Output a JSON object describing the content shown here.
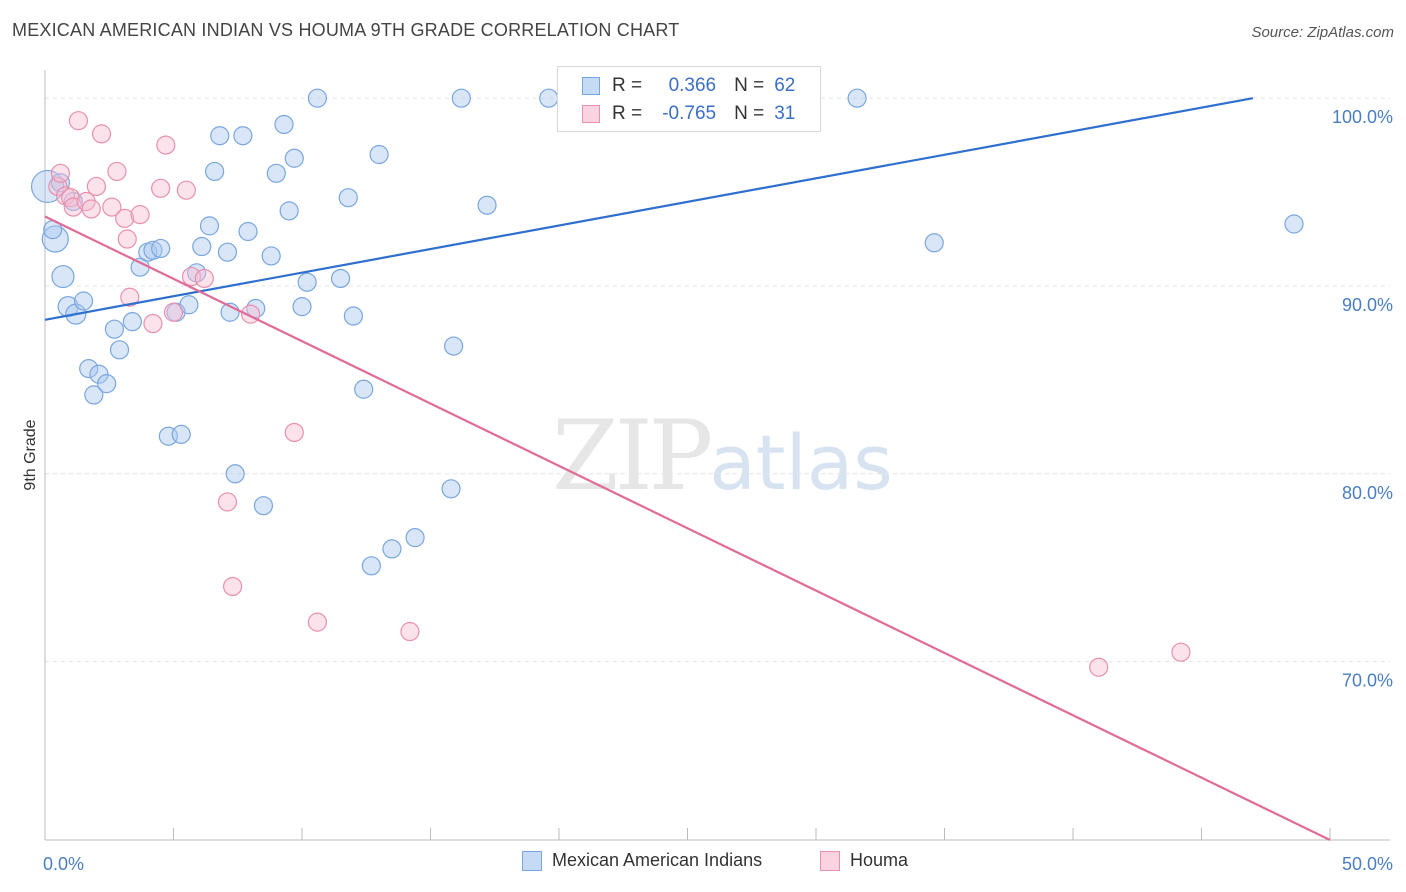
{
  "header": {
    "title": "MEXICAN AMERICAN INDIAN VS HOUMA 9TH GRADE CORRELATION CHART",
    "source": "Source: ZipAtlas.com"
  },
  "watermark": {
    "zip": "ZIP",
    "atlas": "atlas"
  },
  "legend_top": {
    "rows": [
      {
        "r_label": "R =",
        "r_value": "0.366",
        "n_label": "N =",
        "n_value": "62",
        "color": "#a9c8f0",
        "border": "#7aa6de"
      },
      {
        "r_label": "R =",
        "r_value": "-0.765",
        "n_label": "N =",
        "n_value": "31",
        "color": "#f7bfd2",
        "border": "#e890ae"
      }
    ]
  },
  "legend_bottom": [
    {
      "label": "Mexican American Indians",
      "color": "#a9c8f0",
      "border": "#7aa6de"
    },
    {
      "label": "Houma",
      "color": "#f7bfd2",
      "border": "#e890ae"
    }
  ],
  "chart_data": {
    "type": "scatter",
    "title": "MEXICAN AMERICAN INDIAN VS HOUMA 9TH GRADE CORRELATION CHART",
    "xlabel": "",
    "ylabel": "9th Grade",
    "xlim": [
      0,
      50
    ],
    "ylim": [
      60.5,
      101.5
    ],
    "x_tick_labels": {
      "left": "0.0%",
      "right": "50.0%"
    },
    "y_ticks": [
      {
        "value": 100,
        "label": "100.0%"
      },
      {
        "value": 90,
        "label": "90.0%"
      },
      {
        "value": 80,
        "label": "80.0%"
      },
      {
        "value": 70,
        "label": "70.0%"
      }
    ],
    "grid": true,
    "legend": "top-center",
    "series": [
      {
        "name": "Mexican American Indians",
        "color": "#a9c8f0",
        "stroke": "#7aa6de",
        "trend": {
          "x": [
            0,
            47
          ],
          "y": [
            88.2,
            100.0
          ],
          "color": "#2f6fcf"
        },
        "points": [
          [
            0.1,
            95.3,
            16
          ],
          [
            0.4,
            92.5,
            13
          ],
          [
            0.7,
            90.5,
            11
          ],
          [
            0.9,
            88.9,
            10
          ],
          [
            1.2,
            88.5,
            10
          ],
          [
            1.5,
            89.2,
            9
          ],
          [
            1.7,
            85.6,
            9
          ],
          [
            1.9,
            84.2,
            9
          ],
          [
            2.1,
            85.3,
            9
          ],
          [
            2.4,
            84.8,
            9
          ],
          [
            2.7,
            87.7,
            9
          ],
          [
            2.9,
            86.6,
            9
          ],
          [
            3.4,
            88.1,
            9
          ],
          [
            3.7,
            91.0,
            9
          ],
          [
            4.0,
            91.8,
            9
          ],
          [
            4.2,
            91.9,
            9
          ],
          [
            4.5,
            92.0,
            9
          ],
          [
            4.8,
            82.0,
            9
          ],
          [
            5.1,
            88.6,
            9
          ],
          [
            5.3,
            82.1,
            9
          ],
          [
            5.6,
            89.0,
            9
          ],
          [
            5.9,
            90.7,
            9
          ],
          [
            6.1,
            92.1,
            9
          ],
          [
            6.4,
            93.2,
            9
          ],
          [
            6.6,
            96.1,
            9
          ],
          [
            6.8,
            98.0,
            9
          ],
          [
            7.1,
            91.8,
            9
          ],
          [
            7.2,
            88.6,
            9
          ],
          [
            7.4,
            80.0,
            9
          ],
          [
            7.7,
            98.0,
            9
          ],
          [
            7.9,
            92.9,
            9
          ],
          [
            8.2,
            88.8,
            9
          ],
          [
            8.5,
            78.3,
            9
          ],
          [
            8.8,
            91.6,
            9
          ],
          [
            9.0,
            96.0,
            9
          ],
          [
            9.3,
            98.6,
            9
          ],
          [
            9.5,
            94.0,
            9
          ],
          [
            9.7,
            96.8,
            9
          ],
          [
            10.0,
            88.9,
            9
          ],
          [
            10.2,
            90.2,
            9
          ],
          [
            10.6,
            100.0,
            9
          ],
          [
            11.5,
            90.4,
            9
          ],
          [
            11.8,
            94.7,
            9
          ],
          [
            12.0,
            88.4,
            9
          ],
          [
            12.4,
            84.5,
            9
          ],
          [
            12.7,
            75.1,
            9
          ],
          [
            13.0,
            97.0,
            9
          ],
          [
            13.5,
            76.0,
            9
          ],
          [
            14.4,
            76.6,
            9
          ],
          [
            15.8,
            79.2,
            9
          ],
          [
            15.9,
            86.8,
            9
          ],
          [
            16.2,
            100.0,
            9
          ],
          [
            17.2,
            94.3,
            9
          ],
          [
            19.6,
            100.0,
            9
          ],
          [
            26.4,
            100.0,
            9
          ],
          [
            27.4,
            100.0,
            9
          ],
          [
            31.6,
            100.0,
            9
          ],
          [
            34.6,
            92.3,
            9
          ],
          [
            48.6,
            93.3,
            9
          ],
          [
            0.3,
            93.0,
            9
          ],
          [
            0.6,
            95.5,
            9
          ],
          [
            1.1,
            94.5,
            9
          ]
        ]
      },
      {
        "name": "Houma",
        "color": "#f7bfd2",
        "stroke": "#e890ae",
        "trend": {
          "x": [
            0,
            50
          ],
          "y": [
            93.7,
            60.5
          ],
          "color": "#e06c98"
        },
        "points": [
          [
            0.5,
            95.3,
            9
          ],
          [
            0.6,
            96.0,
            9
          ],
          [
            0.8,
            94.8,
            9
          ],
          [
            1.0,
            94.7,
            9
          ],
          [
            1.1,
            94.2,
            9
          ],
          [
            1.3,
            98.8,
            9
          ],
          [
            1.6,
            94.5,
            9
          ],
          [
            1.8,
            94.1,
            9
          ],
          [
            2.0,
            95.3,
            9
          ],
          [
            2.2,
            98.1,
            9
          ],
          [
            2.6,
            94.2,
            9
          ],
          [
            2.8,
            96.1,
            9
          ],
          [
            3.1,
            93.6,
            9
          ],
          [
            3.2,
            92.5,
            9
          ],
          [
            3.3,
            89.4,
            9
          ],
          [
            3.7,
            93.8,
            9
          ],
          [
            4.2,
            88.0,
            9
          ],
          [
            4.5,
            95.2,
            9
          ],
          [
            4.7,
            97.5,
            9
          ],
          [
            5.0,
            88.6,
            9
          ],
          [
            5.5,
            95.1,
            9
          ],
          [
            5.7,
            90.5,
            9
          ],
          [
            6.2,
            90.4,
            9
          ],
          [
            7.1,
            78.5,
            9
          ],
          [
            7.3,
            74.0,
            9
          ],
          [
            8.0,
            88.5,
            9
          ],
          [
            9.7,
            82.2,
            9
          ],
          [
            10.6,
            72.1,
            9
          ],
          [
            14.2,
            71.6,
            9
          ],
          [
            41.0,
            69.7,
            9
          ],
          [
            44.2,
            70.5,
            9
          ]
        ]
      }
    ]
  }
}
